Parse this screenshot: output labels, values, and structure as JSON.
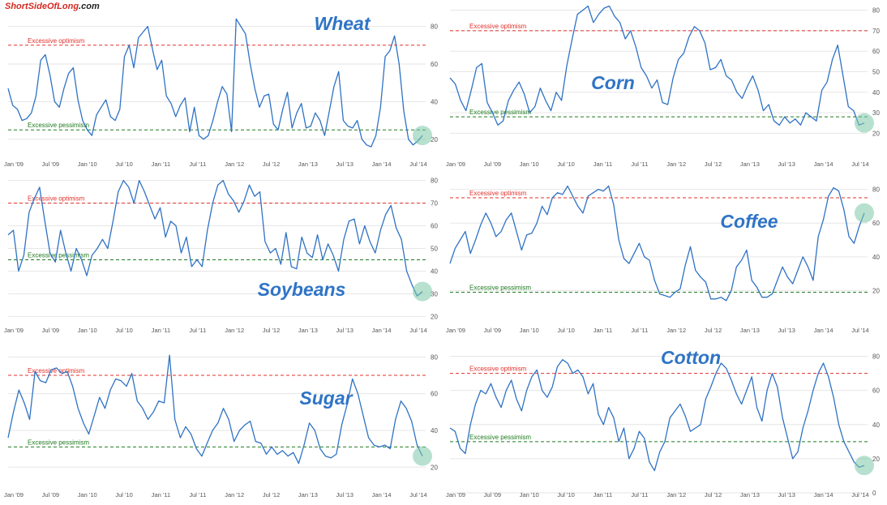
{
  "watermark": {
    "part1": "ShortSideOfLong",
    "part2": ".com"
  },
  "colors": {
    "line": "#2f72c4",
    "optimism": "#e0302a",
    "pessimism": "#1e7a1e",
    "title": "#2e74c6",
    "highlight": "#7cc7a8",
    "grid": "#e6e6e6",
    "tick": "#555555"
  },
  "chart_data": [
    {
      "type": "line",
      "title": "Wheat",
      "x_ticks": [
        "Jan '09",
        "Jul '09",
        "Jan '10",
        "Jul '10",
        "Jan '11",
        "Jul '11",
        "Jan '12",
        "Jul '12",
        "Jan '13",
        "Jul '13",
        "Jan '14",
        "Jul '14"
      ],
      "y_ticks": [
        20,
        40,
        60,
        80
      ],
      "ylim": [
        10,
        88
      ],
      "optimism": {
        "label": "Excessive optimism",
        "value": 70
      },
      "pessimism": {
        "label": "Excessive pessimism",
        "value": 25
      },
      "values": [
        47,
        38,
        36,
        30,
        31,
        34,
        43,
        62,
        65,
        54,
        40,
        37,
        47,
        55,
        58,
        41,
        30,
        25,
        22,
        33,
        37,
        41,
        32,
        30,
        36,
        64,
        70,
        58,
        74,
        77,
        80,
        68,
        57,
        62,
        43,
        39,
        32,
        38,
        42,
        24,
        37,
        22,
        20,
        22,
        30,
        40,
        48,
        44,
        24,
        84,
        80,
        76,
        60,
        47,
        37,
        43,
        44,
        28,
        25,
        36,
        45,
        26,
        34,
        39,
        26,
        27,
        34,
        30,
        22,
        35,
        48,
        56,
        30,
        27,
        26,
        30,
        20,
        17,
        16,
        22,
        37,
        64,
        67,
        75,
        60,
        35,
        20,
        17,
        19,
        22
      ]
    },
    {
      "type": "line",
      "title": "Corn",
      "x_ticks": [
        "Jan '09",
        "Jul '09",
        "Jan '10",
        "Jul '10",
        "Jan '11",
        "Jul '11",
        "Jan '12",
        "Jul '12",
        "Jan '13",
        "Jul '13",
        "Jan '14",
        "Jul '14"
      ],
      "y_ticks": [
        20,
        30,
        40,
        50,
        60,
        70,
        80
      ],
      "ylim": [
        17,
        83
      ],
      "optimism": {
        "label": "Excessive optimism",
        "value": 70
      },
      "pessimism": {
        "label": "Excessive pessimism",
        "value": 28
      },
      "values": [
        47,
        44,
        36,
        31,
        41,
        52,
        54,
        35,
        30,
        24,
        26,
        36,
        41,
        45,
        39,
        30,
        33,
        42,
        36,
        31,
        40,
        36,
        53,
        66,
        78,
        80,
        82,
        74,
        78,
        81,
        82,
        77,
        74,
        66,
        70,
        62,
        52,
        48,
        42,
        46,
        35,
        34,
        47,
        56,
        59,
        67,
        72,
        70,
        64,
        51,
        52,
        56,
        48,
        46,
        40,
        37,
        43,
        48,
        41,
        31,
        34,
        26,
        24,
        28,
        25,
        27,
        24,
        30,
        28,
        26,
        41,
        45,
        56,
        63,
        48,
        33,
        31,
        24,
        25
      ]
    },
    {
      "type": "line",
      "title": "Soybeans",
      "x_ticks": [
        "Jan '09",
        "Jul '09",
        "Jan '10",
        "Jul '10",
        "Jan '11",
        "Jul '11",
        "Jan '12",
        "Jul '12",
        "Jan '13",
        "Jul '13",
        "Jan '14",
        "Jul '14"
      ],
      "y_ticks": [
        20,
        30,
        40,
        50,
        60,
        70,
        80
      ],
      "ylim": [
        18,
        82
      ],
      "optimism": {
        "label": "Excessive optimism",
        "value": 70
      },
      "pessimism": {
        "label": "Excessive pessimism",
        "value": 45
      },
      "values": [
        56,
        58,
        40,
        47,
        66,
        72,
        77,
        62,
        48,
        44,
        58,
        48,
        40,
        50,
        45,
        38,
        47,
        50,
        54,
        50,
        62,
        75,
        80,
        77,
        70,
        80,
        75,
        69,
        63,
        68,
        55,
        62,
        60,
        48,
        55,
        42,
        45,
        42,
        58,
        70,
        78,
        80,
        74,
        71,
        66,
        71,
        78,
        73,
        75,
        53,
        48,
        50,
        43,
        57,
        42,
        41,
        55,
        48,
        46,
        56,
        45,
        52,
        47,
        40,
        54,
        62,
        63,
        52,
        60,
        53,
        48,
        58,
        65,
        69,
        59,
        54,
        40,
        34,
        29,
        31
      ]
    },
    {
      "type": "line",
      "title": "Coffee",
      "x_ticks": [
        "Jan '09",
        "Jul '09",
        "Jan '10",
        "Jul '10",
        "Jan '11",
        "Jul '11",
        "Jan '12",
        "Jul '12",
        "Jan '13",
        "Jul '13",
        "Jan '14",
        "Jul '14"
      ],
      "y_ticks": [
        20,
        40,
        60,
        80
      ],
      "ylim": [
        0,
        88
      ],
      "optimism": {
        "label": "Excessive optimism",
        "value": 75
      },
      "pessimism": {
        "label": "Excessive pessimism",
        "value": 19
      },
      "values": [
        36,
        45,
        50,
        55,
        42,
        50,
        59,
        66,
        60,
        52,
        55,
        62,
        66,
        55,
        44,
        53,
        54,
        60,
        70,
        65,
        75,
        78,
        77,
        82,
        76,
        70,
        66,
        76,
        78,
        80,
        79,
        82,
        71,
        50,
        39,
        36,
        42,
        48,
        40,
        38,
        26,
        18,
        17,
        16,
        19,
        21,
        35,
        46,
        32,
        28,
        25,
        15,
        15,
        16,
        14,
        20,
        34,
        38,
        44,
        26,
        22,
        16,
        16,
        18,
        26,
        34,
        28,
        24,
        32,
        40,
        34,
        26,
        52,
        62,
        76,
        81,
        79,
        68,
        52,
        48,
        58,
        66
      ]
    },
    {
      "type": "line",
      "title": "Sugar",
      "x_ticks": [
        "Jan '09",
        "Jul '09",
        "Jan '10",
        "Jul '10",
        "Jan '11",
        "Jul '11",
        "Jan '12",
        "Jul '12",
        "Jan '13",
        "Jul '13",
        "Jan '14",
        "Jul '14"
      ],
      "y_ticks": [
        20,
        40,
        60,
        80
      ],
      "ylim": [
        6,
        85
      ],
      "optimism": {
        "label": "Excessive optimism",
        "value": 70
      },
      "pessimism": {
        "label": "Excessive pessimism",
        "value": 31
      },
      "values": [
        36,
        50,
        62,
        55,
        46,
        72,
        67,
        66,
        73,
        74,
        71,
        72,
        64,
        52,
        44,
        38,
        48,
        58,
        52,
        62,
        68,
        67,
        64,
        71,
        56,
        52,
        46,
        50,
        56,
        55,
        81,
        46,
        36,
        42,
        38,
        30,
        26,
        33,
        40,
        44,
        52,
        46,
        34,
        40,
        43,
        45,
        34,
        33,
        27,
        31,
        27,
        29,
        26,
        28,
        22,
        32,
        44,
        40,
        30,
        26,
        25,
        27,
        43,
        54,
        68,
        60,
        48,
        36,
        32,
        31,
        32,
        30,
        46,
        56,
        52,
        45,
        32,
        26
      ]
    },
    {
      "type": "line",
      "title": "Cotton",
      "x_ticks": [
        "Jan '09",
        "Jul '09",
        "Jan '10",
        "Jul '10",
        "Jan '11",
        "Jul '11",
        "Jan '12",
        "Jul '12",
        "Jan '13",
        "Jul '13",
        "Jan '14",
        "Jul '14"
      ],
      "y_ticks": [
        0,
        20,
        40,
        60,
        80
      ],
      "ylim": [
        0,
        85
      ],
      "optimism": {
        "label": "Excessive optimism",
        "value": 70
      },
      "pessimism": {
        "label": "Excessive pessimism",
        "value": 30
      },
      "values": [
        38,
        36,
        26,
        23,
        40,
        52,
        60,
        58,
        64,
        56,
        50,
        60,
        66,
        55,
        48,
        60,
        68,
        72,
        60,
        56,
        62,
        74,
        78,
        76,
        70,
        72,
        68,
        58,
        64,
        46,
        40,
        50,
        44,
        30,
        38,
        20,
        26,
        36,
        32,
        18,
        13,
        24,
        30,
        44,
        48,
        52,
        45,
        36,
        38,
        40,
        55,
        62,
        70,
        76,
        73,
        66,
        58,
        52,
        60,
        68,
        50,
        42,
        60,
        70,
        62,
        44,
        32,
        20,
        24,
        38,
        48,
        60,
        70,
        76,
        68,
        56,
        40,
        30,
        24,
        18,
        15,
        16
      ]
    }
  ]
}
